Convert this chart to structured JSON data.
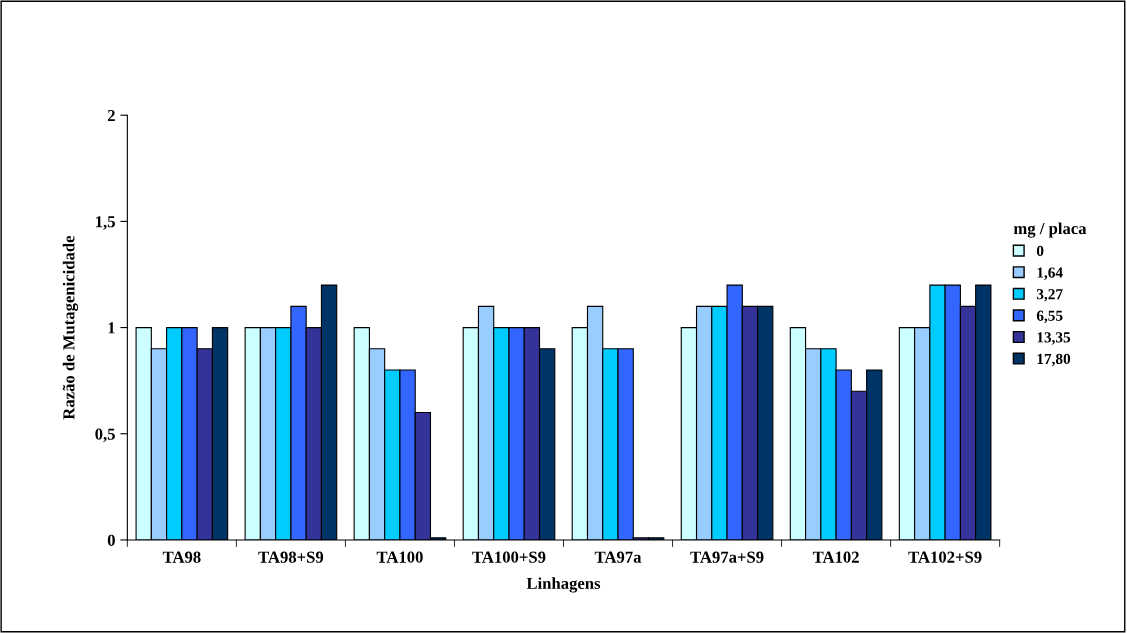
{
  "chart_data": {
    "type": "bar",
    "xlabel": "Linhagens",
    "ylabel": "Razão de Mutagenicidade",
    "legend_title": "mg / placa",
    "legend": "right",
    "categories": [
      "TA98",
      "TA98+S9",
      "TA100",
      "TA100+S9",
      "TA97a",
      "TA97a+S9",
      "TA102",
      "TA102+S9"
    ],
    "series": [
      {
        "name": "0",
        "color": "#ccffff",
        "values": [
          1,
          1,
          1,
          1,
          1,
          1,
          1,
          1
        ]
      },
      {
        "name": "1,64",
        "color": "#99ccff",
        "values": [
          0.9,
          1,
          0.9,
          1.1,
          1.1,
          1.1,
          0.9,
          1
        ]
      },
      {
        "name": "3,27",
        "color": "#00ccff",
        "values": [
          1,
          1,
          0.8,
          1,
          0.9,
          1.1,
          0.9,
          1.2
        ]
      },
      {
        "name": "6,55",
        "color": "#3366ff",
        "values": [
          1,
          1.1,
          0.8,
          1,
          0.9,
          1.2,
          0.8,
          1.2
        ]
      },
      {
        "name": "13,35",
        "color": "#333399",
        "values": [
          0.9,
          1,
          0.6,
          1,
          0.01,
          1.1,
          0.7,
          1.1
        ]
      },
      {
        "name": "17,80",
        "color": "#003366",
        "values": [
          1,
          1.2,
          0.01,
          0.9,
          0.01,
          1.1,
          0.8,
          1.2
        ]
      }
    ],
    "ylim": [
      0,
      2
    ],
    "yticks": [
      0,
      {
        "value": 0.5,
        "label": "0,5"
      },
      1,
      {
        "value": 1.5,
        "label": "1,5"
      },
      2
    ],
    "grid": false
  }
}
